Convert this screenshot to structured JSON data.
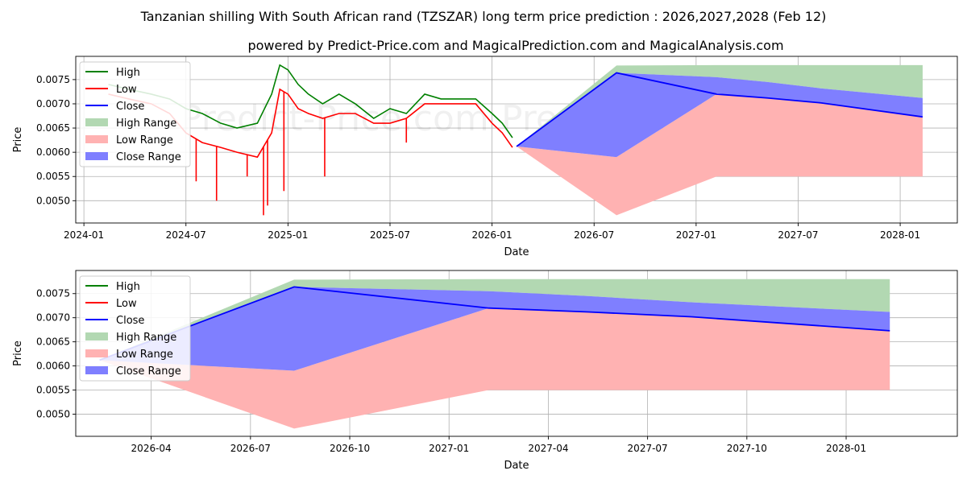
{
  "title": "Tanzanian shilling With South African rand (TZSZAR) long term price prediction : 2026,2027,2028 (Feb 12)",
  "subtitle": "powered by Predict-Price.com and MagicalPrediction.com and MagicalAnalysis.com",
  "watermark": "Predict-Price.com",
  "colors": {
    "high": "#008000",
    "low": "#ff0000",
    "close": "#0000ff",
    "high_range": "#b2d8b2",
    "low_range": "#ffb2b2",
    "close_range": "#7f7fff"
  },
  "chart_data": [
    {
      "type": "line",
      "name": "long-term",
      "xlabel": "Date",
      "ylabel": "Price",
      "xlim": [
        2023.96,
        2028.28
      ],
      "ylim": [
        0.00454,
        0.00798
      ],
      "yticks": [
        0.005,
        0.0055,
        0.006,
        0.0065,
        0.007,
        0.0075
      ],
      "ytick_labels": [
        "0.0050",
        "0.0055",
        "0.0060",
        "0.0065",
        "0.0070",
        "0.0075"
      ],
      "xticks": [
        2024.0,
        2024.5,
        2025.0,
        2025.5,
        2026.0,
        2026.5,
        2027.0,
        2027.5,
        2028.0
      ],
      "xtick_labels": [
        "2024-01",
        "2024-07",
        "2025-01",
        "2025-07",
        "2026-01",
        "2026-07",
        "2027-01",
        "2027-07",
        "2028-01"
      ],
      "legend": [
        "High",
        "Low",
        "Close",
        "High Range",
        "Low Range",
        "Close Range"
      ],
      "history": {
        "x": [
          2024.12,
          2024.22,
          2024.33,
          2024.42,
          2024.5,
          2024.58,
          2024.67,
          2024.75,
          2024.85,
          2024.92,
          2024.96,
          2025.0,
          2025.05,
          2025.1,
          2025.17,
          2025.25,
          2025.33,
          2025.42,
          2025.5,
          2025.58,
          2025.67,
          2025.75,
          2025.83,
          2025.92,
          2026.0,
          2026.05,
          2026.1
        ],
        "high": [
          0.0074,
          0.0073,
          0.0072,
          0.0071,
          0.0069,
          0.0068,
          0.0066,
          0.0065,
          0.0066,
          0.0072,
          0.0078,
          0.0077,
          0.0074,
          0.0072,
          0.007,
          0.0072,
          0.007,
          0.0067,
          0.0069,
          0.0068,
          0.0072,
          0.0071,
          0.0071,
          0.0071,
          0.0068,
          0.0066,
          0.0063
        ],
        "low": [
          0.0072,
          0.0071,
          0.007,
          0.0068,
          0.0064,
          0.0062,
          0.0061,
          0.006,
          0.0059,
          0.0064,
          0.0073,
          0.0072,
          0.0069,
          0.0068,
          0.0067,
          0.0068,
          0.0068,
          0.0066,
          0.0066,
          0.0067,
          0.007,
          0.007,
          0.007,
          0.007,
          0.0066,
          0.0064,
          0.0061
        ]
      },
      "history_spikes": [
        {
          "x": 2024.55,
          "low": 0.0054
        },
        {
          "x": 2024.65,
          "low": 0.005
        },
        {
          "x": 2024.8,
          "low": 0.0055
        },
        {
          "x": 2024.88,
          "low": 0.0047
        },
        {
          "x": 2024.9,
          "low": 0.0049
        },
        {
          "x": 2024.98,
          "low": 0.0052
        },
        {
          "x": 2025.18,
          "low": 0.0055
        },
        {
          "x": 2025.58,
          "low": 0.0062
        }
      ]
    },
    {
      "type": "line",
      "name": "forecast-zoom",
      "xlabel": "Date",
      "ylabel": "Price",
      "xlim": [
        2026.06,
        2028.28
      ],
      "ylim": [
        0.00454,
        0.00798
      ],
      "yticks": [
        0.005,
        0.0055,
        0.006,
        0.0065,
        0.007,
        0.0075
      ],
      "ytick_labels": [
        "0.0050",
        "0.0055",
        "0.0060",
        "0.0065",
        "0.0070",
        "0.0075"
      ],
      "xticks": [
        2026.25,
        2026.5,
        2026.75,
        2027.0,
        2027.25,
        2027.5,
        2027.75,
        2028.0
      ],
      "xtick_labels": [
        "2026-04",
        "2026-07",
        "2026-10",
        "2027-01",
        "2027-04",
        "2027-07",
        "2027-10",
        "2028-01"
      ],
      "legend": [
        "High",
        "Low",
        "Close",
        "High Range",
        "Low Range",
        "Close Range"
      ]
    }
  ],
  "forecast": {
    "x": [
      2026.12,
      2026.61,
      2027.1,
      2027.35,
      2027.61,
      2028.11
    ],
    "close": [
      0.00612,
      0.00764,
      0.0072,
      0.00712,
      0.00702,
      0.00673
    ],
    "high_max": [
      0.00612,
      0.00779,
      0.0078,
      0.0078,
      0.0078,
      0.0078
    ],
    "close_hi": [
      0.00612,
      0.00764,
      0.00755,
      0.00745,
      0.00732,
      0.00712
    ],
    "close_lo": [
      0.00612,
      0.0059,
      0.0072,
      0.00712,
      0.00702,
      0.00673
    ],
    "low_min": [
      0.00612,
      0.0047,
      0.0055,
      0.0055,
      0.0055,
      0.0055
    ]
  }
}
